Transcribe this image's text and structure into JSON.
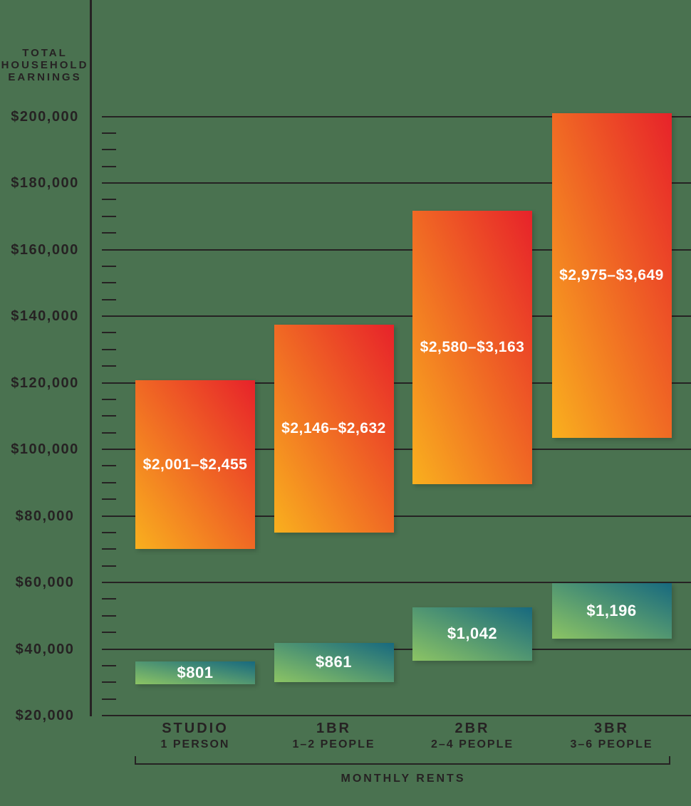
{
  "colors": {
    "background": "#4A7250",
    "ink": "#262223",
    "bar_text": "#FFFFFF",
    "income_gradient": [
      "#F9B01E",
      "#E7222A"
    ],
    "rent_gradient": [
      "#8CC464",
      "#17697F"
    ]
  },
  "y_axis": {
    "title_lines": [
      "TOTAL",
      "HOUSEHOLD",
      "EARNINGS"
    ],
    "tick_labels": [
      "$200,000",
      "$180,000",
      "$160,000",
      "$140,000",
      "$120,000",
      "$100,000",
      "$80,000",
      "$60,000",
      "$40,000",
      "$20,000"
    ]
  },
  "chart_data": {
    "type": "bar",
    "subtype": "floating-range-columns",
    "title": "",
    "ylabel": "TOTAL HOUSEHOLD EARNINGS",
    "xlabel": "MONTHLY RENTS",
    "ylim": [
      20000,
      200000
    ],
    "y_major_step": 20000,
    "y_minor_step": 5000,
    "grid": true,
    "categories": [
      "STUDIO",
      "1BR",
      "2BR",
      "3BR"
    ],
    "category_occupancies": [
      "1 PERSON",
      "1–2 PEOPLE",
      "2–4 PEOPLE",
      "3–6 PEOPLE"
    ],
    "series": [
      {
        "name": "higher-rent-income-band",
        "style": "orange-red-gradient",
        "rent_labels": [
          "$2,001–$2,455",
          "$2,146–$2,632",
          "$2,580–$3,163",
          "$2,975–$3,649"
        ],
        "earnings_ranges": [
          [
            70000,
            120700
          ],
          [
            75000,
            137500
          ],
          [
            89500,
            171700
          ],
          [
            103500,
            201000
          ]
        ]
      },
      {
        "name": "lower-rent-income-band",
        "style": "green-teal-gradient",
        "rent_labels": [
          "$801",
          "$861",
          "$1,042",
          "$1,196"
        ],
        "earnings_ranges": [
          [
            29400,
            36200
          ],
          [
            30000,
            41900
          ],
          [
            36400,
            52600
          ],
          [
            43000,
            59800
          ]
        ]
      }
    ]
  }
}
